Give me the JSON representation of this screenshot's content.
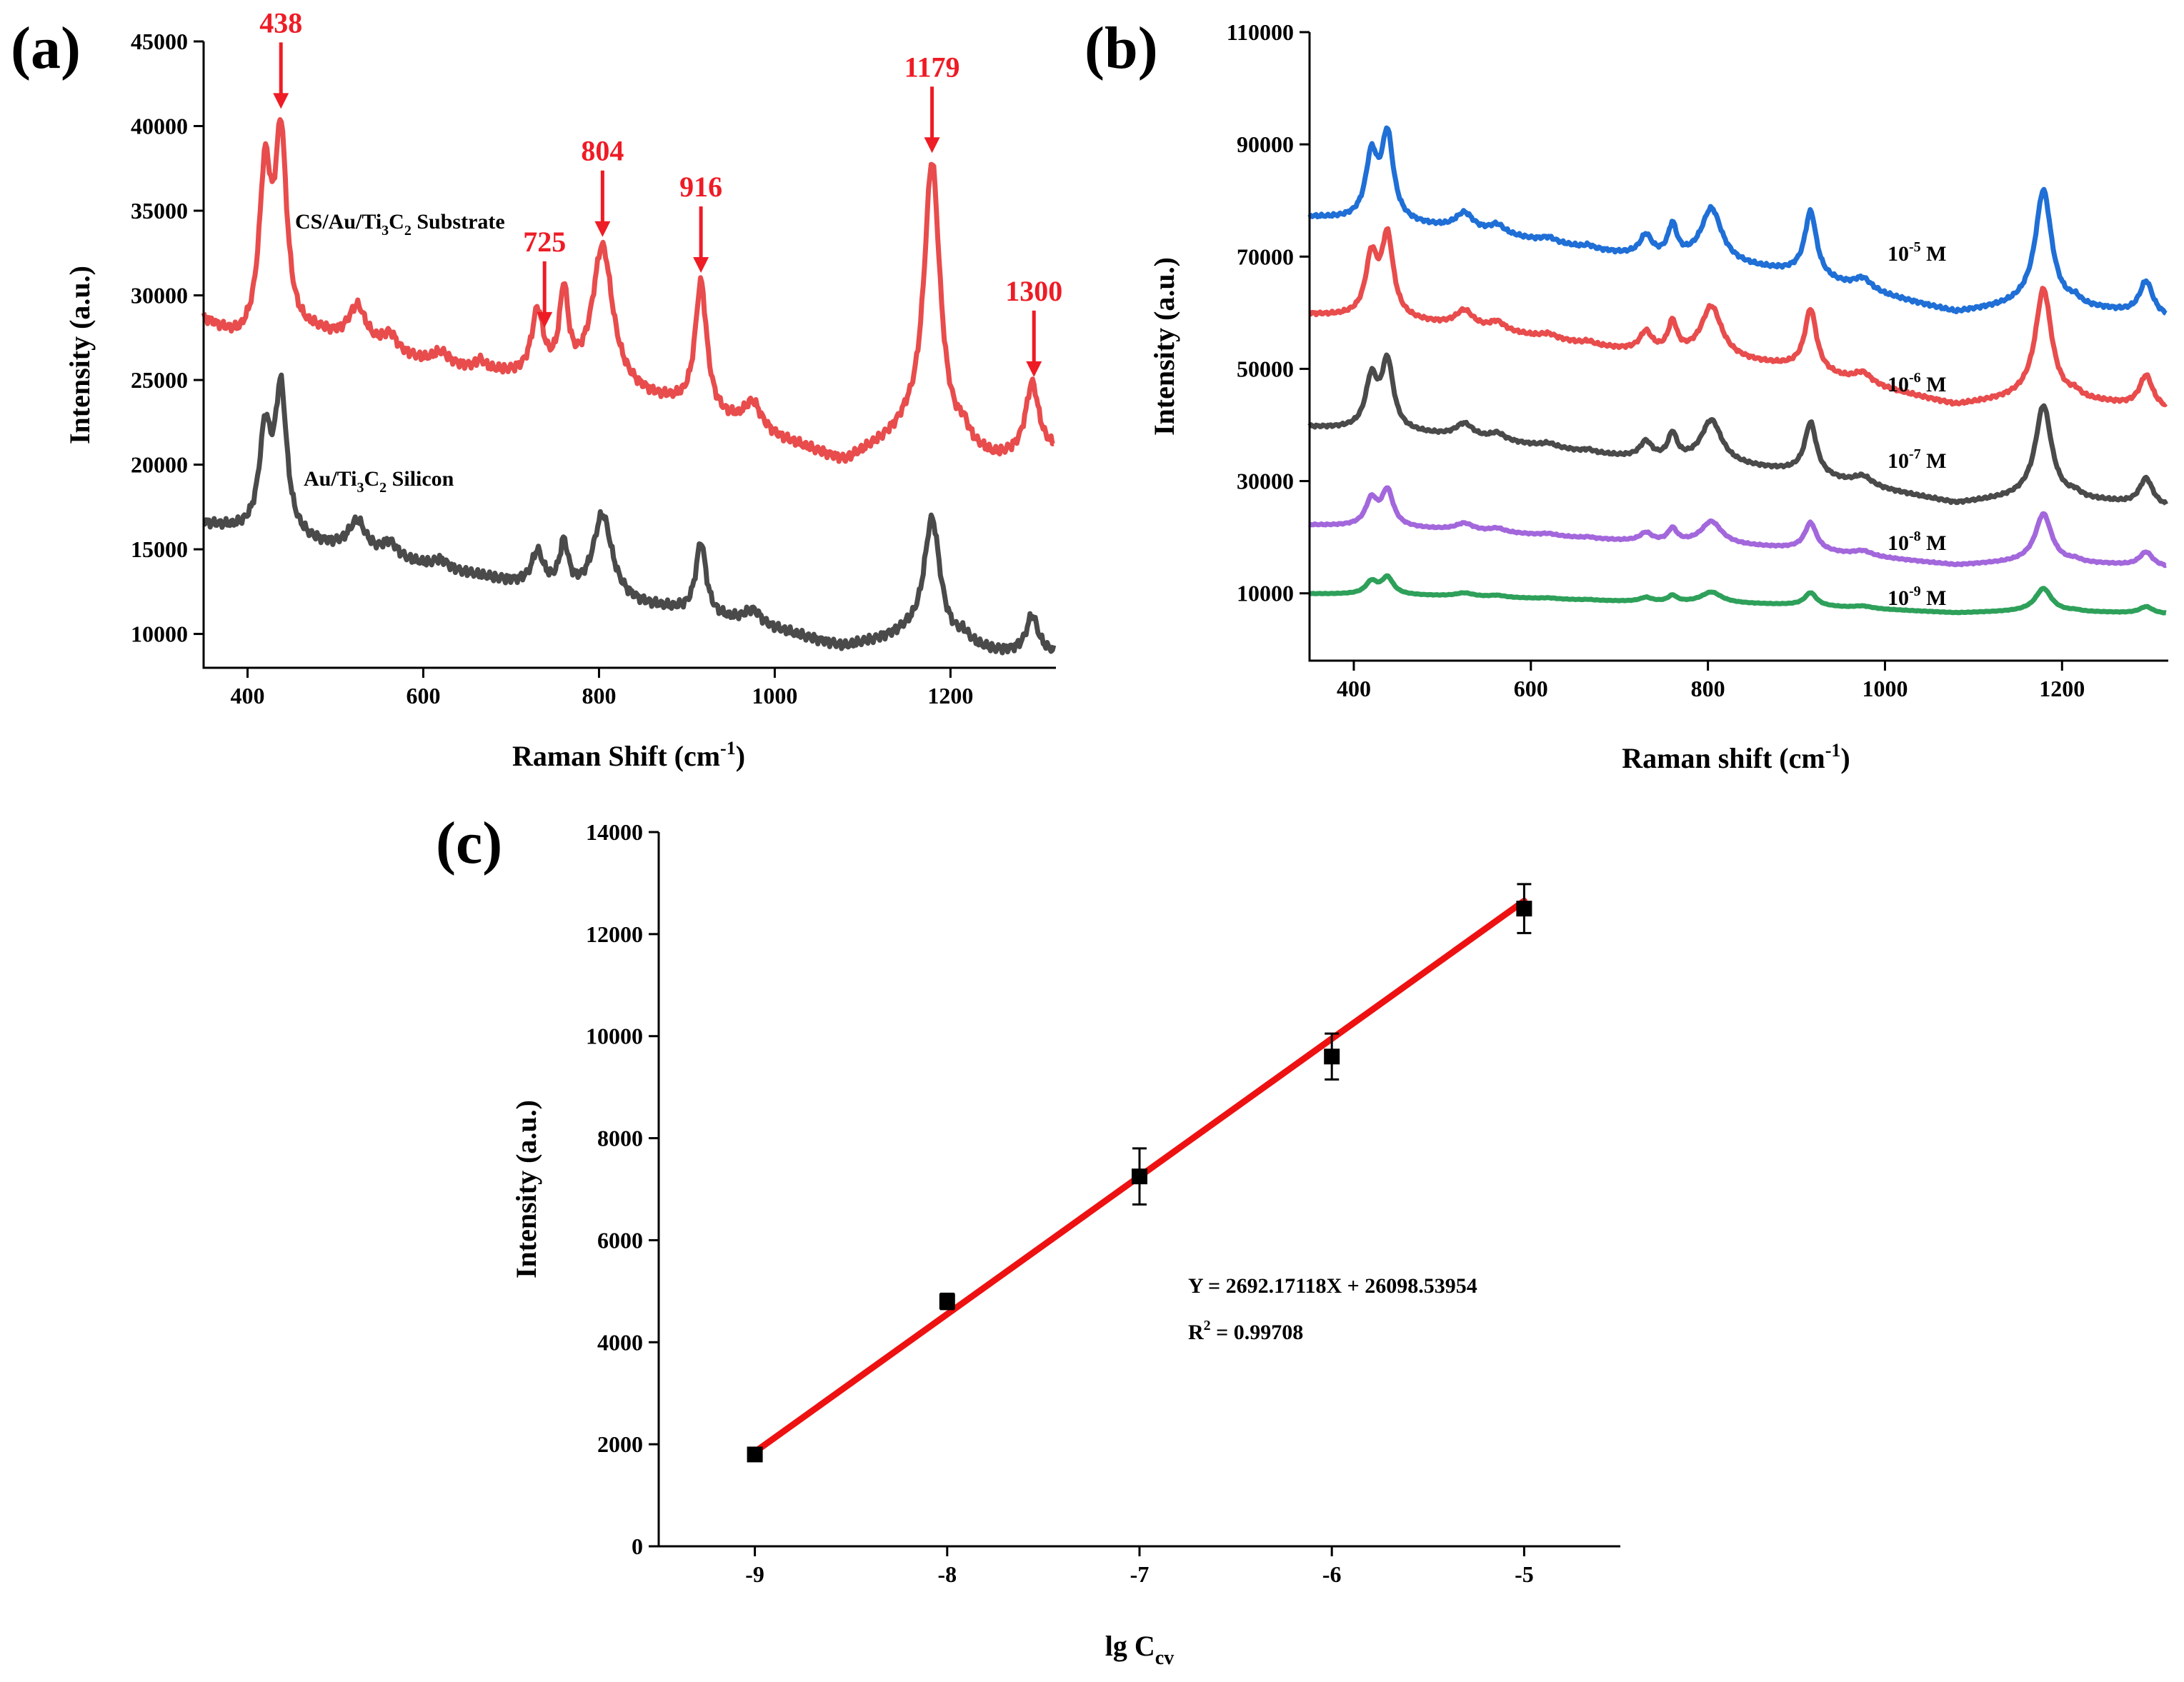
{
  "chart_data": [
    {
      "panel": "(a)",
      "type": "line",
      "xlabel": "Raman Shift (cm",
      "xlabel_sup": "-1",
      "xlabel_end": ")",
      "ylabel": "Intensity (a.u.)",
      "xlim": [
        350,
        1320
      ],
      "ylim": [
        8000,
        45000
      ],
      "xticks": [
        400,
        600,
        800,
        1000,
        1200
      ],
      "yticks": [
        10000,
        15000,
        20000,
        25000,
        30000,
        35000,
        40000,
        45000
      ],
      "series": [
        {
          "name": "CS/Au/Ti3C2 Substrate",
          "label_parts": [
            "CS/Au/Ti",
            "3",
            "C",
            "2",
            " Substrate"
          ],
          "color": "#e84c4c",
          "baseline": [
            [
              350,
              28500
            ],
            [
              390,
              27200
            ],
            [
              440,
              27400
            ],
            [
              480,
              27600
            ],
            [
              600,
              26000
            ],
            [
              700,
              25200
            ],
            [
              800,
              24500
            ],
            [
              880,
              23500
            ],
            [
              1000,
              21500
            ],
            [
              1080,
              20100
            ],
            [
              1150,
              21800
            ],
            [
              1250,
              20200
            ],
            [
              1320,
              20700
            ]
          ],
          "peaks": [
            [
              420,
              9500,
              8
            ],
            [
              438,
              11500,
              8
            ],
            [
              525,
              2200,
              12
            ],
            [
              562,
              1000,
              10
            ],
            [
              620,
              700,
              10
            ],
            [
              665,
              500,
              6
            ],
            [
              730,
              3800,
              8
            ],
            [
              760,
              5000,
              6
            ],
            [
              804,
              8300,
              14
            ],
            [
              916,
              7700,
              8
            ],
            [
              975,
              1600,
              12
            ],
            [
              1179,
              16500,
              11
            ],
            [
              1215,
              800,
              7
            ],
            [
              1293,
              4200,
              9
            ]
          ]
        },
        {
          "name": "Au/Ti3C2 Silicon",
          "label_parts": [
            "Au/Ti",
            "3",
            "C",
            "2",
            " Silicon"
          ],
          "color": "#4a4a4a",
          "baseline": [
            [
              350,
              16500
            ],
            [
              390,
              16000
            ],
            [
              450,
              15500
            ],
            [
              600,
              14000
            ],
            [
              700,
              13000
            ],
            [
              800,
              12000
            ],
            [
              900,
              11200
            ],
            [
              1000,
              10200
            ],
            [
              1080,
              9200
            ],
            [
              1150,
              9900
            ],
            [
              1250,
              8900
            ],
            [
              1320,
              8800
            ]
          ],
          "peaks": [
            [
              420,
              5800,
              8
            ],
            [
              438,
              8500,
              8
            ],
            [
              525,
              1800,
              12
            ],
            [
              562,
              900,
              10
            ],
            [
              620,
              500,
              10
            ],
            [
              730,
              2000,
              8
            ],
            [
              760,
              2700,
              6
            ],
            [
              804,
              5000,
              13
            ],
            [
              916,
              4300,
              7
            ],
            [
              975,
              900,
              12
            ],
            [
              1179,
              7200,
              11
            ],
            [
              1215,
              500,
              7
            ],
            [
              1293,
              2200,
              8
            ]
          ]
        }
      ],
      "peak_annotations": [
        "438",
        "725",
        "804",
        "916",
        "1179",
        "1300"
      ],
      "peak_positions": [
        438,
        738,
        804,
        916,
        1179,
        1295
      ]
    },
    {
      "panel": "(b)",
      "type": "line",
      "xlabel": "Raman shift (cm",
      "xlabel_sup": "-1",
      "xlabel_end": ")",
      "ylabel": "Intensity (a.u.)",
      "xlim": [
        350,
        1320
      ],
      "ylim": [
        -2000,
        110000
      ],
      "xticks": [
        400,
        600,
        800,
        1000,
        1200
      ],
      "yticks": [
        10000,
        30000,
        50000,
        70000,
        90000,
        110000
      ],
      "series": [
        {
          "name": "10^-5 M",
          "label_base": "10",
          "label_exp": "-5",
          "label_unit": " M",
          "color": "#1f6fd6",
          "offset": 60000,
          "scale": 1.0
        },
        {
          "name": "10^-6 M",
          "label_base": "10",
          "label_exp": "-6",
          "label_unit": " M",
          "color": "#e84c4c",
          "offset": 43500,
          "scale": 0.95
        },
        {
          "name": "10^-7 M",
          "label_base": "10",
          "label_exp": "-7",
          "label_unit": " M",
          "color": "#4a4a4a",
          "offset": 26000,
          "scale": 0.8
        },
        {
          "name": "10^-8 M",
          "label_base": "10",
          "label_exp": "-8",
          "label_unit": " M",
          "color": "#a367dc",
          "offset": 15000,
          "scale": 0.42
        },
        {
          "name": "10^-9 M",
          "label_base": "10",
          "label_exp": "-9",
          "label_unit": " M",
          "color": "#2ea05a",
          "offset": 6500,
          "scale": 0.2
        }
      ],
      "profile": {
        "baseline": [
          [
            350,
            17000
          ],
          [
            450,
            16000
          ],
          [
            560,
            14000
          ],
          [
            700,
            10500
          ],
          [
            800,
            9000
          ],
          [
            900,
            7000
          ],
          [
            1000,
            3000
          ],
          [
            1080,
            0
          ],
          [
            1160,
            1500
          ],
          [
            1250,
            400
          ],
          [
            1320,
            -1000
          ]
        ],
        "peaks": [
          [
            420,
            11000,
            8
          ],
          [
            438,
            15000,
            8
          ],
          [
            525,
            3000,
            12
          ],
          [
            562,
            1500,
            10
          ],
          [
            620,
            800,
            10
          ],
          [
            665,
            500,
            6
          ],
          [
            730,
            3500,
            8
          ],
          [
            760,
            5500,
            6
          ],
          [
            804,
            9500,
            14
          ],
          [
            916,
            11500,
            8
          ],
          [
            975,
            2000,
            12
          ],
          [
            1179,
            20500,
            11
          ],
          [
            1215,
            1000,
            7
          ],
          [
            1295,
            6000,
            9
          ]
        ]
      }
    },
    {
      "panel": "(c)",
      "type": "scatter",
      "xlabel": "lg C",
      "xlabel_sub": "cv",
      "ylabel": "Intensity (a.u.)",
      "xlim": [
        -9.5,
        -4.5
      ],
      "ylim": [
        0,
        14000
      ],
      "xticks": [
        -9,
        -8,
        -7,
        -6,
        -5
      ],
      "yticks": [
        0,
        2000,
        4000,
        6000,
        8000,
        10000,
        12000,
        14000
      ],
      "x": [
        -9,
        -8,
        -7,
        -6,
        -5
      ],
      "y": [
        1800,
        4800,
        7250,
        9600,
        12500
      ],
      "error": [
        80,
        150,
        550,
        450,
        480
      ],
      "fit": {
        "x": [
          -9,
          -5
        ],
        "y": [
          1850,
          12650
        ],
        "color": "#ee1111"
      },
      "equation": "Y = 2692.17118X + 26098.53954",
      "r2_label": "R",
      "r2_sup": "2",
      "r2_value": " = 0.99708"
    }
  ]
}
